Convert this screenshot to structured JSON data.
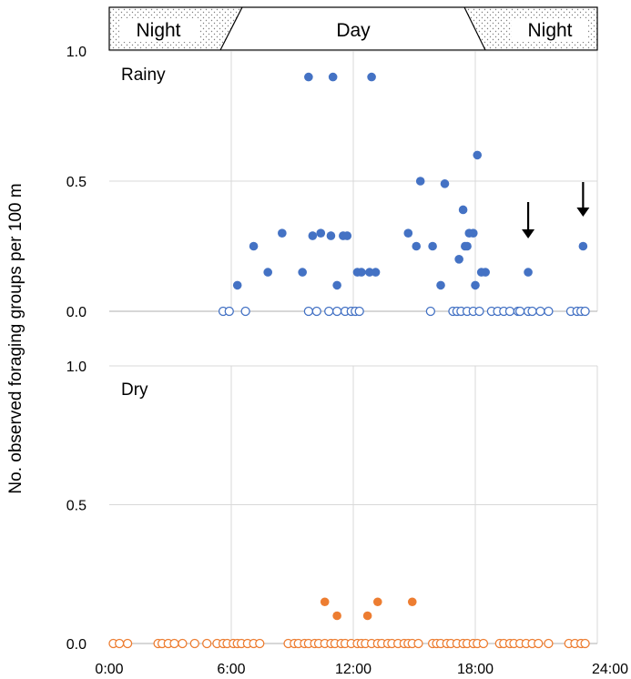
{
  "colors": {
    "rainy": "#4472C4",
    "dry": "#ED7D31",
    "grid": "#D9D9D9",
    "axis": "#BFBFBF",
    "band_fill": "#FFFFFF",
    "band_dots": "#7F7F7F"
  },
  "band": {
    "left_label": "Night",
    "middle_label": "Day",
    "right_label": "Night"
  },
  "ylabel": "No. observed foraging groups per 100 m",
  "x_tick_labels": [
    "0:00",
    "6:00",
    "12:00",
    "18:00",
    "24:00"
  ],
  "chart_data": [
    {
      "type": "scatter",
      "panel_label": "Rainy",
      "x_unit": "hours",
      "xlim": [
        0,
        24
      ],
      "ylim": [
        0,
        1.0
      ],
      "y_ticks": [
        0.0,
        0.5,
        1.0
      ],
      "y_tick_labels": [
        "0.0",
        "0.5",
        "1.0"
      ],
      "x_grid": [
        6,
        12,
        18
      ],
      "arrow_markers_x": [
        20.6,
        23.3
      ],
      "filled": [
        [
          6.3,
          0.1
        ],
        [
          7.1,
          0.25
        ],
        [
          7.8,
          0.15
        ],
        [
          8.5,
          0.3
        ],
        [
          9.5,
          0.15
        ],
        [
          9.8,
          0.9
        ],
        [
          10.0,
          0.29
        ],
        [
          10.4,
          0.3
        ],
        [
          10.9,
          0.29
        ],
        [
          11.0,
          0.9
        ],
        [
          11.2,
          0.1
        ],
        [
          11.5,
          0.29
        ],
        [
          11.7,
          0.29
        ],
        [
          12.2,
          0.15
        ],
        [
          12.4,
          0.15
        ],
        [
          12.8,
          0.15
        ],
        [
          12.9,
          0.9
        ],
        [
          13.1,
          0.15
        ],
        [
          14.7,
          0.3
        ],
        [
          15.1,
          0.25
        ],
        [
          15.3,
          0.5
        ],
        [
          15.9,
          0.25
        ],
        [
          16.3,
          0.1
        ],
        [
          16.5,
          0.49
        ],
        [
          17.2,
          0.2
        ],
        [
          17.4,
          0.39
        ],
        [
          17.5,
          0.25
        ],
        [
          17.6,
          0.25
        ],
        [
          17.7,
          0.3
        ],
        [
          17.9,
          0.3
        ],
        [
          18.0,
          0.1
        ],
        [
          18.1,
          0.6
        ],
        [
          18.3,
          0.15
        ],
        [
          18.5,
          0.15
        ],
        [
          20.6,
          0.15
        ],
        [
          23.3,
          0.25
        ]
      ],
      "open_x": [
        5.6,
        5.9,
        6.7,
        9.8,
        10.2,
        10.8,
        11.2,
        11.6,
        11.9,
        12.1,
        12.3,
        15.8,
        16.9,
        17.1,
        17.3,
        17.6,
        17.9,
        18.2,
        18.8,
        19.1,
        19.4,
        19.7,
        20.1,
        20.2,
        20.6,
        20.8,
        21.2,
        21.6,
        22.7,
        23.0,
        23.2,
        23.4
      ]
    },
    {
      "type": "scatter",
      "panel_label": "Dry",
      "x_unit": "hours",
      "xlim": [
        0,
        24
      ],
      "ylim": [
        0,
        1.0
      ],
      "y_ticks": [
        0.0,
        0.5,
        1.0
      ],
      "y_tick_labels": [
        "0.0",
        "0.5",
        "1.0"
      ],
      "x_grid": [
        6,
        12,
        18
      ],
      "filled": [
        [
          10.6,
          0.15
        ],
        [
          11.2,
          0.1
        ],
        [
          12.7,
          0.1
        ],
        [
          13.2,
          0.15
        ],
        [
          14.9,
          0.15
        ]
      ],
      "open_x": [
        0.2,
        0.5,
        0.9,
        2.4,
        2.6,
        2.9,
        3.2,
        3.6,
        4.2,
        4.8,
        5.3,
        5.6,
        5.8,
        6.1,
        6.3,
        6.5,
        6.8,
        7.1,
        7.4,
        8.8,
        9.1,
        9.3,
        9.6,
        9.8,
        10.1,
        10.3,
        10.6,
        10.9,
        11.1,
        11.4,
        11.6,
        11.9,
        12.2,
        12.4,
        12.6,
        12.9,
        13.2,
        13.4,
        13.7,
        13.9,
        14.2,
        14.5,
        14.7,
        14.9,
        15.2,
        15.9,
        16.1,
        16.3,
        16.6,
        16.8,
        17.1,
        17.4,
        17.6,
        17.9,
        18.1,
        18.4,
        19.2,
        19.4,
        19.7,
        19.9,
        20.2,
        20.5,
        20.8,
        21.1,
        21.6,
        22.6,
        22.9,
        23.2,
        23.4
      ]
    }
  ]
}
